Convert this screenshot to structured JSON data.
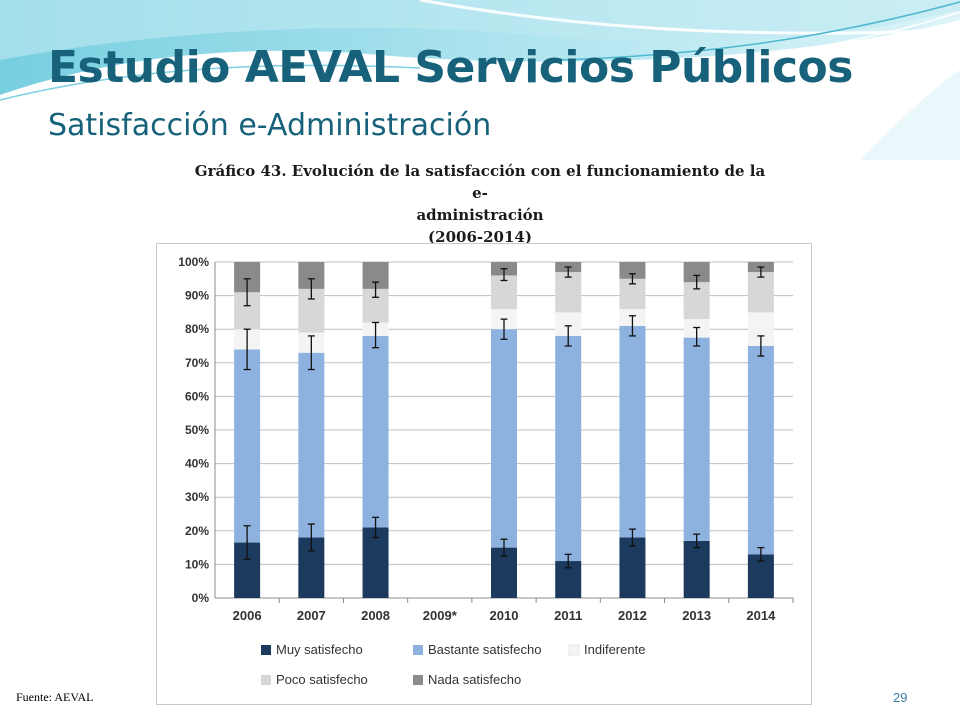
{
  "slide": {
    "title": "Estudio AEVAL Servicios Públicos",
    "subtitle": "Satisfacción e-Administración",
    "source": "Fuente: AEVAL",
    "page_number": "29"
  },
  "colors": {
    "title": "#17627a",
    "muy_satisfecho": "#1b3a5e",
    "bastante_satisfecho": "#8eb2e0",
    "indiferente": "#f4f4f4",
    "poco_satisfecho": "#d7d7d7",
    "nada_satisfecho": "#8a8a8a"
  },
  "chart_data": {
    "type": "bar",
    "stacked": true,
    "title": "Gráfico 43. Evolución de la satisfacción con el funcionamiento de la e-administración (2006-2014)",
    "title_lines": [
      "Gráfico 43. Evolución de la satisfacción con el funcionamiento de la e-",
      "administración",
      "(2006-2014)"
    ],
    "categories": [
      "2006",
      "2007",
      "2008",
      "2009*",
      "2010",
      "2011",
      "2012",
      "2013",
      "2014"
    ],
    "y_ticks": [
      "0%",
      "10%",
      "20%",
      "30%",
      "40%",
      "50%",
      "60%",
      "70%",
      "80%",
      "90%",
      "100%"
    ],
    "ylim": [
      0,
      100
    ],
    "grid": true,
    "legend_position": "bottom",
    "series": [
      {
        "name": "Muy satisfecho",
        "color": "#1b3a5e",
        "values": [
          16.5,
          18,
          21,
          null,
          15,
          11,
          18,
          17,
          13
        ]
      },
      {
        "name": "Bastante satisfecho",
        "color": "#8eb2e0",
        "values": [
          57.5,
          55,
          57,
          null,
          65,
          67,
          63,
          60.5,
          62
        ]
      },
      {
        "name": "Indiferente",
        "color": "#f4f4f4",
        "values": [
          6,
          6,
          4,
          null,
          6,
          7,
          5,
          5.5,
          10
        ]
      },
      {
        "name": "Poco satisfecho",
        "color": "#d7d7d7",
        "values": [
          11,
          13,
          10,
          null,
          10,
          12,
          9,
          11,
          12
        ]
      },
      {
        "name": "Nada satisfecho",
        "color": "#8a8a8a",
        "values": [
          9,
          8,
          8,
          null,
          4,
          3,
          5,
          6,
          3
        ]
      }
    ],
    "error_bars": [
      {
        "category": "2006",
        "center": 16.5,
        "low": 11.5,
        "high": 21.5
      },
      {
        "category": "2006",
        "center": 74,
        "low": 68,
        "high": 80
      },
      {
        "category": "2006",
        "center": 91,
        "low": 87,
        "high": 95
      },
      {
        "category": "2007",
        "center": 18,
        "low": 14,
        "high": 22
      },
      {
        "category": "2007",
        "center": 73,
        "low": 68,
        "high": 78
      },
      {
        "category": "2007",
        "center": 92,
        "low": 89,
        "high": 95
      },
      {
        "category": "2008",
        "center": 21,
        "low": 18,
        "high": 24
      },
      {
        "category": "2008",
        "center": 78,
        "low": 74.5,
        "high": 82
      },
      {
        "category": "2008",
        "center": 92,
        "low": 89.5,
        "high": 94
      },
      {
        "category": "2010",
        "center": 15,
        "low": 12.5,
        "high": 17.5
      },
      {
        "category": "2010",
        "center": 80,
        "low": 77,
        "high": 83
      },
      {
        "category": "2010",
        "center": 96,
        "low": 94.5,
        "high": 98
      },
      {
        "category": "2011",
        "center": 11,
        "low": 9,
        "high": 13
      },
      {
        "category": "2011",
        "center": 78,
        "low": 75,
        "high": 81
      },
      {
        "category": "2011",
        "center": 97,
        "low": 95.5,
        "high": 98.5
      },
      {
        "category": "2012",
        "center": 18,
        "low": 15.5,
        "high": 20.5
      },
      {
        "category": "2012",
        "center": 81,
        "low": 78,
        "high": 84
      },
      {
        "category": "2012",
        "center": 95,
        "low": 93.5,
        "high": 96.5
      },
      {
        "category": "2013",
        "center": 17,
        "low": 15,
        "high": 19
      },
      {
        "category": "2013",
        "center": 77.5,
        "low": 75,
        "high": 80.5
      },
      {
        "category": "2013",
        "center": 94,
        "low": 92,
        "high": 96
      },
      {
        "category": "2014",
        "center": 13,
        "low": 11,
        "high": 15
      },
      {
        "category": "2014",
        "center": 75,
        "low": 72,
        "high": 78
      },
      {
        "category": "2014",
        "center": 97,
        "low": 95.5,
        "high": 98.5
      }
    ]
  }
}
